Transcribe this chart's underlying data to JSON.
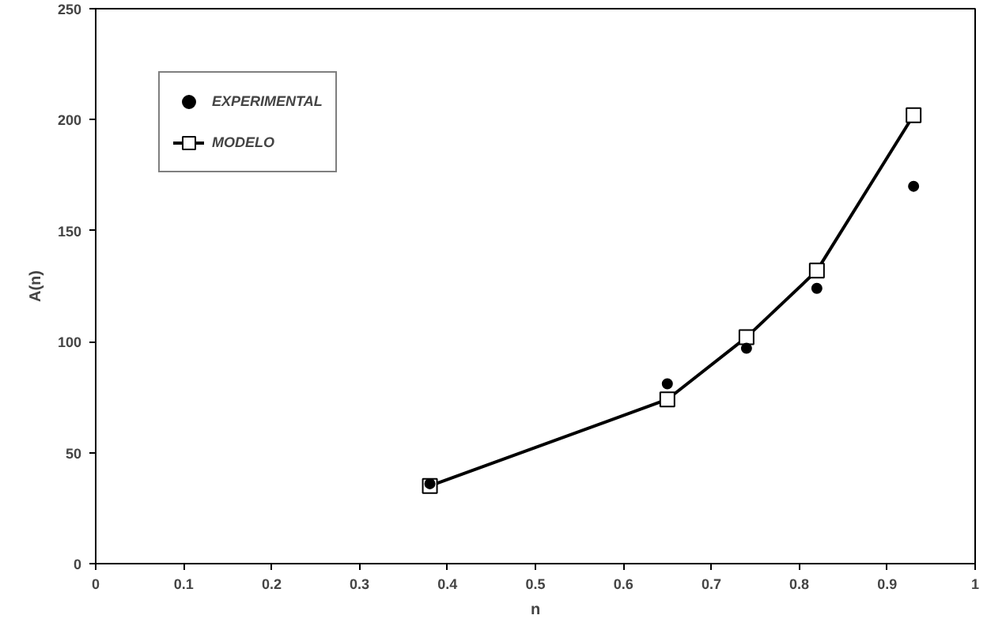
{
  "chart_data": {
    "type": "line",
    "xlabel": "n",
    "ylabel": "A(n)",
    "xlim": [
      0,
      1
    ],
    "xticks": [
      0,
      0.1,
      0.2,
      0.3,
      0.4,
      0.5,
      0.6,
      0.7,
      0.8,
      0.9,
      1
    ],
    "ylim": [
      0,
      250
    ],
    "yticks": [
      0,
      50,
      100,
      150,
      200,
      250
    ],
    "grid": false,
    "legend": "top left",
    "series": [
      {
        "name": "EXPERIMENTAL",
        "type": "scatter",
        "marker": "circle",
        "color": "#000000",
        "x": [
          0.38,
          0.65,
          0.74,
          0.82,
          0.93
        ],
        "values": [
          36,
          81,
          97,
          124,
          170
        ]
      },
      {
        "name": "MODELO",
        "marker": "square",
        "line_style": "solid",
        "color": "#000000",
        "x": [
          0.38,
          0.65,
          0.74,
          0.82,
          0.93
        ],
        "values": [
          35,
          74,
          102,
          132,
          202
        ]
      }
    ]
  }
}
